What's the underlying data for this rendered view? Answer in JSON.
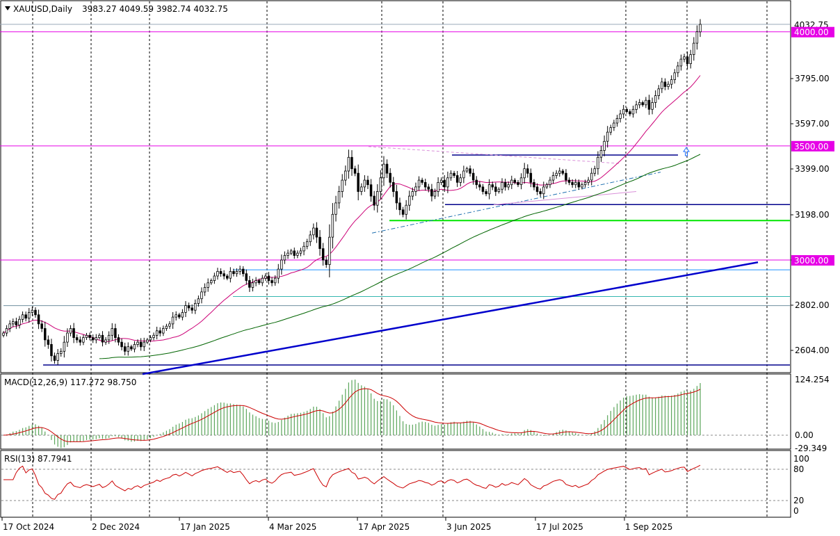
{
  "header": {
    "symbol_label": "XAUUSD,Daily",
    "ohlc": "3983.27 4049.59 3982.74 4032.75",
    "dropdown_icon": "triangle-down-icon"
  },
  "colors": {
    "bull": "#000000",
    "bear": "#000000",
    "level_magenta": "#e600e6",
    "level_blue": "#1e90ff",
    "level_green": "#00e600",
    "trend_blue": "#0000cc",
    "ma_fast": "#cc0077",
    "ma_slow": "#006400",
    "macd_hist": "#5aa55a",
    "macd_signal": "#cc0000",
    "rsi": "#cc0000",
    "grid": "#000000"
  },
  "chart_data": [
    {
      "type": "candlestick",
      "name": "price",
      "title": "XAUUSD,Daily",
      "ohlc_last": {
        "open": 3983.27,
        "high": 4049.59,
        "low": 3982.74,
        "close": 4032.75
      },
      "ylim": [
        2480,
        4090
      ],
      "y_ticks": [
        2604.0,
        2802.0,
        3000.0,
        3198.0,
        3399.0,
        3597.0,
        3795.0
      ],
      "y_tick_labels": [
        "2604.00",
        "2802.00",
        "3000.00",
        "3198.00",
        "3399.00",
        "3597.00",
        "3795.00"
      ],
      "x_ticks": [
        "17 Oct 2024",
        "2 Dec 2024",
        "17 Jan 2025",
        "4 Mar 2025",
        "17 Apr 2025",
        "3 Jun 2025",
        "17 Jul 2025",
        "1 Sep 2025"
      ],
      "price_tags": [
        {
          "label": "4032.75",
          "value": 4032.75,
          "style": "current"
        },
        {
          "label": "4000.00",
          "value": 4000.0,
          "style": "magenta"
        },
        {
          "label": "3500.00",
          "value": 3500.0,
          "style": "magenta"
        },
        {
          "label": "3000.00",
          "value": 3000.0,
          "style": "magenta"
        }
      ],
      "horizontal_levels": [
        {
          "value": 4000,
          "color": "magenta"
        },
        {
          "value": 3500,
          "color": "magenta"
        },
        {
          "value": 3000,
          "color": "magenta"
        },
        {
          "value": 2957,
          "color": "blue"
        },
        {
          "value": 2840,
          "color": "teal"
        },
        {
          "value": 2800,
          "color": "slate"
        },
        {
          "value": 3243,
          "color": "navy"
        },
        {
          "value": 3173,
          "color": "green"
        },
        {
          "value": 2540,
          "color": "navy"
        }
      ],
      "closes": [
        2680,
        2700,
        2720,
        2730,
        2715,
        2740,
        2760,
        2745,
        2770,
        2780,
        2760,
        2720,
        2700,
        2650,
        2630,
        2580,
        2560,
        2590,
        2600,
        2640,
        2680,
        2700,
        2660,
        2650,
        2640,
        2660,
        2670,
        2660,
        2650,
        2660,
        2670,
        2640,
        2650,
        2670,
        2700,
        2660,
        2640,
        2620,
        2600,
        2620,
        2610,
        2630,
        2640,
        2620,
        2640,
        2650,
        2660,
        2670,
        2690,
        2680,
        2700,
        2710,
        2720,
        2750,
        2760,
        2750,
        2770,
        2800,
        2790,
        2780,
        2810,
        2830,
        2860,
        2880,
        2900,
        2910,
        2930,
        2950,
        2940,
        2930,
        2920,
        2950,
        2940,
        2950,
        2960,
        2940,
        2910,
        2880,
        2900,
        2910,
        2900,
        2920,
        2930,
        2910,
        2900,
        2920,
        2960,
        3000,
        3020,
        3030,
        3040,
        3020,
        3030,
        3040,
        3060,
        3080,
        3110,
        3140,
        3100,
        3050,
        3000,
        2980,
        3100,
        3200,
        3250,
        3300,
        3350,
        3390,
        3450,
        3400,
        3380,
        3300,
        3320,
        3350,
        3330,
        3280,
        3240,
        3300,
        3360,
        3420,
        3380,
        3340,
        3300,
        3250,
        3220,
        3200,
        3240,
        3280,
        3300,
        3320,
        3350,
        3340,
        3320,
        3310,
        3280,
        3300,
        3340,
        3350,
        3320,
        3360,
        3380,
        3370,
        3340,
        3360,
        3390,
        3400,
        3380,
        3350,
        3330,
        3320,
        3300,
        3290,
        3330,
        3320,
        3300,
        3310,
        3340,
        3320,
        3330,
        3350,
        3340,
        3330,
        3360,
        3400,
        3380,
        3340,
        3320,
        3300,
        3290,
        3320,
        3330,
        3350,
        3370,
        3380,
        3390,
        3380,
        3350,
        3340,
        3330,
        3340,
        3320,
        3330,
        3340,
        3350,
        3380,
        3400,
        3450,
        3480,
        3520,
        3560,
        3580,
        3600,
        3620,
        3640,
        3660,
        3650,
        3640,
        3660,
        3680,
        3690,
        3680,
        3700,
        3660,
        3690,
        3720,
        3750,
        3780,
        3760,
        3770,
        3790,
        3820,
        3850,
        3880,
        3890,
        3860,
        3900,
        3950,
        4000,
        4032.75
      ]
    },
    {
      "type": "bar",
      "name": "MACD",
      "title": "MACD(12,26,9) 117.272 98.750",
      "indicator_label": "MACD(12,26,9)",
      "main_value": 117.272,
      "signal_value": 98.75,
      "ylim": [
        -35,
        130
      ],
      "axis_labels": [
        "124.254",
        "0.00",
        "-29.349"
      ],
      "axis_values": [
        124.254,
        0.0,
        -29.349
      ]
    },
    {
      "type": "line",
      "name": "RSI",
      "title": "RSI(13) 87.7941",
      "indicator_label": "RSI(13)",
      "last_value": 87.7941,
      "ylim": [
        0,
        100
      ],
      "axis_labels": [
        "100",
        "80",
        "20",
        "0"
      ],
      "axis_values": [
        100,
        80,
        20,
        0
      ],
      "guides": [
        80,
        20
      ]
    }
  ]
}
